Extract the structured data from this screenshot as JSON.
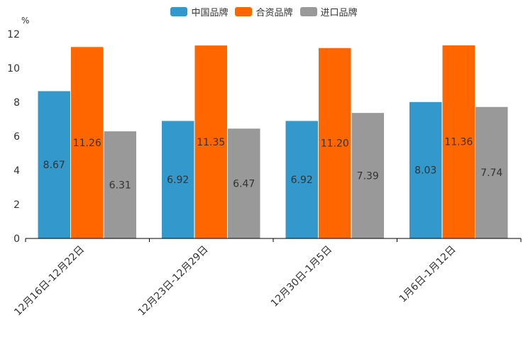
{
  "chart_data": {
    "type": "bar",
    "unit": "%",
    "categories": [
      "12月16日-12月22日",
      "12月23日-12月29日",
      "12月30日-1月5日",
      "1月6日-1月12日"
    ],
    "series": [
      {
        "name": "中国品牌",
        "color": "#3399cc",
        "values": [
          8.67,
          6.92,
          6.92,
          8.03
        ],
        "labels": [
          "8.67",
          "6.92",
          "6.92",
          "8.03"
        ]
      },
      {
        "name": "合资品牌",
        "color": "#ff6600",
        "values": [
          11.26,
          11.35,
          11.2,
          11.36
        ],
        "labels": [
          "11.26",
          "11.35",
          "11.20",
          "11.36"
        ]
      },
      {
        "name": "进口品牌",
        "color": "#999999",
        "values": [
          6.31,
          6.47,
          7.39,
          7.74
        ],
        "labels": [
          "6.31",
          "6.47",
          "7.39",
          "7.74"
        ]
      }
    ],
    "yticks": [
      "0",
      "2",
      "4",
      "6",
      "8",
      "10",
      "12"
    ],
    "ylim": [
      0,
      12
    ],
    "legend_position": "top-center"
  }
}
